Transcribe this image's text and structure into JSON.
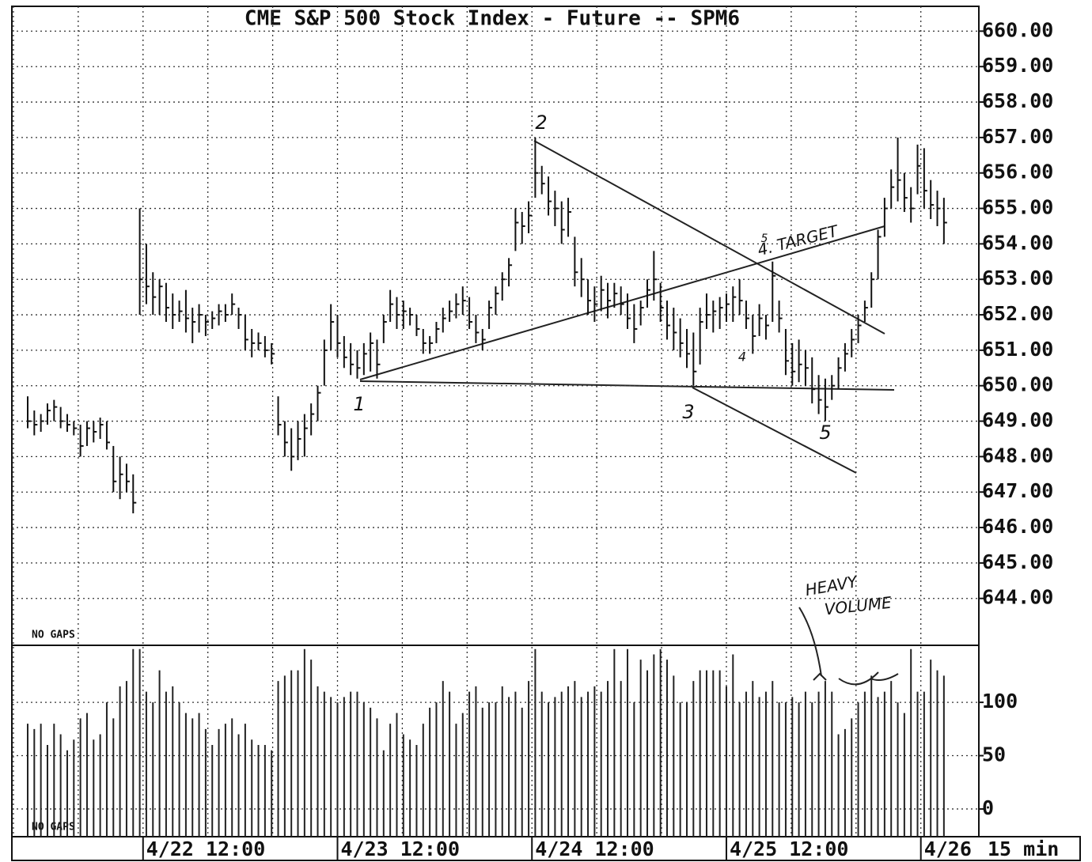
{
  "chart_data": [
    {
      "type": "ohlc",
      "title": "CME S&P 500 Stock Index - Future -- SPM6",
      "annotations": [
        "2",
        "1",
        "3",
        "4",
        "5",
        "5",
        "4. TARGET"
      ],
      "note": "NO GAPS",
      "color": "#111111",
      "xlim": [
        -2.4,
        144.3
      ],
      "ylim": [
        642.7,
        660.7
      ],
      "yticks": [
        {
          "value": 644,
          "label": "644.00"
        },
        {
          "value": 645,
          "label": "645.00"
        },
        {
          "value": 646,
          "label": "646.00"
        },
        {
          "value": 647,
          "label": "647.00"
        },
        {
          "value": 648,
          "label": "648.00"
        },
        {
          "value": 649,
          "label": "649.00"
        },
        {
          "value": 650,
          "label": "650.00"
        },
        {
          "value": 651,
          "label": "651.00"
        },
        {
          "value": 652,
          "label": "652.00"
        },
        {
          "value": 653,
          "label": "653.00"
        },
        {
          "value": 654,
          "label": "654.00"
        },
        {
          "value": 655,
          "label": "655.00"
        },
        {
          "value": 656,
          "label": "656.00"
        },
        {
          "value": 657,
          "label": "657.00"
        },
        {
          "value": 658,
          "label": "658.00"
        },
        {
          "value": 659,
          "label": "659.00"
        },
        {
          "value": 660,
          "label": "660.00"
        }
      ],
      "grid": true,
      "high": [
        649.7,
        649.3,
        649.2,
        649.5,
        649.6,
        649.4,
        649.2,
        649.0,
        648.9,
        649.0,
        649.0,
        649.1,
        649.0,
        648.3,
        648.0,
        647.8,
        647.5,
        655.0,
        654.0,
        653.2,
        653.0,
        652.9,
        652.6,
        652.4,
        652.7,
        652.2,
        652.3,
        652.0,
        652.1,
        652.3,
        652.3,
        652.6,
        652.2,
        652.0,
        651.6,
        651.5,
        651.4,
        651.2,
        649.7,
        649.0,
        648.8,
        649.0,
        649.2,
        649.5,
        650.0,
        651.3,
        652.3,
        652.0,
        651.4,
        651.2,
        651.0,
        651.2,
        651.5,
        651.3,
        652.0,
        652.7,
        652.5,
        652.4,
        652.2,
        652.0,
        651.6,
        651.4,
        651.8,
        652.2,
        652.4,
        652.6,
        652.8,
        652.5,
        652.0,
        651.6,
        652.4,
        652.8,
        653.2,
        653.6,
        655.0,
        654.9,
        655.2,
        657.0,
        656.2,
        655.9,
        655.5,
        655.2,
        655.3,
        654.2,
        653.6,
        653.0,
        652.8,
        653.1,
        652.9,
        652.9,
        652.8,
        652.6,
        652.3,
        652.4,
        653.0,
        653.8,
        652.9,
        652.4,
        652.2,
        651.9,
        651.6,
        651.5,
        652.2,
        652.6,
        652.4,
        652.5,
        652.6,
        652.8,
        653.0,
        652.4,
        652.0,
        652.3,
        652.0,
        653.5,
        652.4,
        651.6,
        651.2,
        651.3,
        651.0,
        650.8,
        650.3,
        650.2,
        650.3,
        650.8,
        651.2,
        651.6,
        652.0,
        652.4,
        653.2,
        654.4,
        655.3,
        656.1,
        657.0,
        656.0,
        655.6,
        656.8,
        656.7,
        655.8,
        655.5,
        655.3
      ],
      "low": [
        648.8,
        648.6,
        648.7,
        648.9,
        649.0,
        648.8,
        648.7,
        648.6,
        648.0,
        648.3,
        648.4,
        648.5,
        648.2,
        647.0,
        646.8,
        647.0,
        646.4,
        652.0,
        652.3,
        652.0,
        652.0,
        651.8,
        651.6,
        651.8,
        651.5,
        651.2,
        651.5,
        651.4,
        651.6,
        651.7,
        651.8,
        652.0,
        651.6,
        651.0,
        650.8,
        651.0,
        650.8,
        650.6,
        648.6,
        648.0,
        647.6,
        647.9,
        648.0,
        648.6,
        649.0,
        650.0,
        651.0,
        650.8,
        650.5,
        650.3,
        650.2,
        650.3,
        650.4,
        650.2,
        651.2,
        651.8,
        651.6,
        651.6,
        651.7,
        651.4,
        650.9,
        650.9,
        651.2,
        651.5,
        651.8,
        651.9,
        652.0,
        651.6,
        651.2,
        651.0,
        651.6,
        652.0,
        652.4,
        652.8,
        653.8,
        654.0,
        654.3,
        655.3,
        655.4,
        654.8,
        654.5,
        654.0,
        654.2,
        652.8,
        652.5,
        652.0,
        651.8,
        652.1,
        651.9,
        652.2,
        652.0,
        651.6,
        651.2,
        651.7,
        652.2,
        652.4,
        651.8,
        651.3,
        651.0,
        650.8,
        650.5,
        650.0,
        650.6,
        651.6,
        651.5,
        651.6,
        651.8,
        651.8,
        652.0,
        651.6,
        650.9,
        651.4,
        651.3,
        651.8,
        651.5,
        650.3,
        650.0,
        650.1,
        650.0,
        649.5,
        649.2,
        649.0,
        649.6,
        649.9,
        650.4,
        650.8,
        651.2,
        651.8,
        652.2,
        653.0,
        654.2,
        655.0,
        655.2,
        654.9,
        654.6,
        655.4,
        655.0,
        654.7,
        654.5,
        654.0
      ],
      "close": [
        649.0,
        648.9,
        649.0,
        649.3,
        649.4,
        649.0,
        648.9,
        648.8,
        648.3,
        648.8,
        648.7,
        648.9,
        648.4,
        647.3,
        647.5,
        647.3,
        646.7,
        653.0,
        652.8,
        652.5,
        652.8,
        652.2,
        652.0,
        652.1,
        651.9,
        651.8,
        652.0,
        651.8,
        651.9,
        652.1,
        652.0,
        652.3,
        652.0,
        651.3,
        651.2,
        651.2,
        651.0,
        650.9,
        648.9,
        648.4,
        648.0,
        648.5,
        648.8,
        649.2,
        649.8,
        651.0,
        651.8,
        651.2,
        650.8,
        650.6,
        650.5,
        650.9,
        651.2,
        650.6,
        651.8,
        652.3,
        652.0,
        652.1,
        652.0,
        651.6,
        651.2,
        651.2,
        651.6,
        651.9,
        652.1,
        652.3,
        652.4,
        651.8,
        651.5,
        651.3,
        652.2,
        652.6,
        653.0,
        653.4,
        654.6,
        654.5,
        654.8,
        656.0,
        655.7,
        655.2,
        655.0,
        654.4,
        654.9,
        653.2,
        653.0,
        652.4,
        652.3,
        652.7,
        652.4,
        652.6,
        652.3,
        651.9,
        651.6,
        652.2,
        652.7,
        653.0,
        652.2,
        651.7,
        651.5,
        651.2,
        650.9,
        650.4,
        651.8,
        652.0,
        652.1,
        652.2,
        652.3,
        652.5,
        652.4,
        651.9,
        651.4,
        651.9,
        651.7,
        653.1,
        651.9,
        650.7,
        650.4,
        650.6,
        650.5,
        649.9,
        649.6,
        649.4,
        650.0,
        650.5,
        650.9,
        651.3,
        651.7,
        652.2,
        653.0,
        654.2,
        655.0,
        655.6,
        655.8,
        655.3,
        655.0,
        656.2,
        655.5,
        655.1,
        655.0,
        654.6
      ]
    },
    {
      "type": "bar",
      "annotations": [
        "HEAVY",
        "VOLUME"
      ],
      "note": "NO GAPS",
      "xlabel": "15 min",
      "color": "#222222",
      "xlim": [
        -2.4,
        144.3
      ],
      "xticks": [
        {
          "value": 17.5,
          "label": "4/22 12:00"
        },
        {
          "value": 47,
          "label": "4/23 12:00"
        },
        {
          "value": 76.5,
          "label": "4/24 12:00"
        },
        {
          "value": 106,
          "label": "4/25 12:00"
        },
        {
          "value": 135.5,
          "label": "4/26"
        }
      ],
      "ylim": [
        -26,
        152
      ],
      "yticks": [
        0,
        50,
        100
      ],
      "grid": true,
      "values": [
        80,
        75,
        80,
        60,
        80,
        70,
        55,
        65,
        85,
        90,
        65,
        70,
        100,
        85,
        115,
        120,
        150,
        150,
        110,
        100,
        130,
        110,
        115,
        100,
        90,
        85,
        90,
        75,
        60,
        75,
        80,
        85,
        70,
        80,
        65,
        60,
        60,
        55,
        120,
        125,
        130,
        130,
        150,
        140,
        115,
        110,
        105,
        100,
        105,
        110,
        110,
        100,
        95,
        85,
        55,
        80,
        90,
        70,
        65,
        60,
        80,
        95,
        100,
        120,
        110,
        80,
        90,
        110,
        115,
        95,
        100,
        100,
        115,
        105,
        110,
        95,
        120,
        150,
        110,
        100,
        105,
        110,
        115,
        120,
        105,
        110,
        115,
        110,
        120,
        150,
        120,
        150,
        100,
        140,
        130,
        145,
        150,
        140,
        125,
        100,
        100,
        120,
        130,
        130,
        130,
        130,
        115,
        145,
        100,
        110,
        120,
        105,
        110,
        120,
        100,
        100,
        105,
        100,
        110,
        100,
        110,
        120,
        110,
        70,
        75,
        85,
        100,
        110,
        125,
        105,
        110,
        120,
        100,
        90,
        150,
        110,
        110,
        140,
        130,
        125
      ]
    }
  ]
}
